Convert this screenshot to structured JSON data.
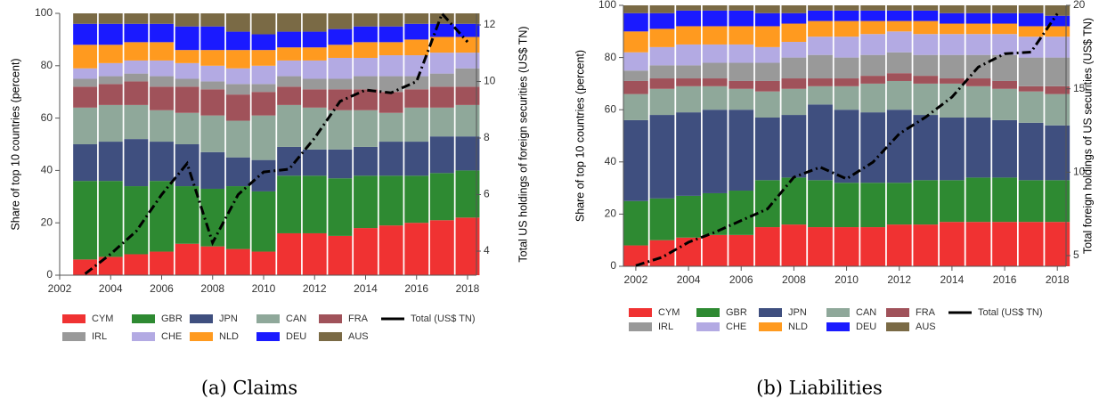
{
  "chart_data": [
    {
      "type": "stacked_bar",
      "caption": "(a) Claims",
      "ylabel": "Share of top 10 countries (percent)",
      "y2label": "Total US holdings of foreign securities (US$ TN)",
      "x": [
        2003,
        2004,
        2005,
        2006,
        2007,
        2008,
        2009,
        2010,
        2011,
        2012,
        2013,
        2014,
        2015,
        2016,
        2017,
        2018
      ],
      "xlim": [
        2002,
        2018.35
      ],
      "xticks": [
        2002,
        2004,
        2006,
        2008,
        2010,
        2012,
        2014,
        2016,
        2018
      ],
      "ylim": [
        0,
        100
      ],
      "yticks": [
        0,
        20,
        40,
        60,
        80,
        100
      ],
      "y2lim": [
        3.15,
        12.41
      ],
      "y2ticks": [
        4,
        6,
        8,
        10,
        12
      ],
      "series": [
        {
          "name": "CYM",
          "color": "#f03232",
          "values": [
            6,
            7,
            8,
            9,
            12,
            11,
            10,
            9,
            16,
            16,
            15,
            18,
            19,
            20,
            21,
            22
          ]
        },
        {
          "name": "GBR",
          "color": "#2e8a32",
          "values": [
            30,
            29,
            26,
            27,
            22,
            22,
            24,
            23,
            22,
            22,
            22,
            20,
            19,
            18,
            18,
            18
          ]
        },
        {
          "name": "JPN",
          "color": "#3f4f7f",
          "values": [
            14,
            15,
            18,
            15,
            16,
            14,
            11,
            12,
            11,
            10,
            11,
            11,
            13,
            13,
            14,
            13
          ]
        },
        {
          "name": "CAN",
          "color": "#8fa89a",
          "values": [
            14,
            14,
            13,
            12,
            12,
            14,
            14,
            17,
            16,
            16,
            15,
            14,
            11,
            13,
            11,
            12
          ]
        },
        {
          "name": "FRA",
          "color": "#a0525a",
          "values": [
            8,
            8,
            9,
            9,
            10,
            10,
            10,
            9,
            7,
            7,
            8,
            8,
            8,
            7,
            8,
            7
          ]
        },
        {
          "name": "IRL",
          "color": "#999999",
          "values": [
            3,
            3,
            3,
            4,
            3,
            3,
            4,
            3,
            4,
            4,
            4,
            5,
            6,
            5,
            5,
            7
          ]
        },
        {
          "name": "CHE",
          "color": "#b3aae3",
          "values": [
            4,
            5,
            5,
            6,
            6,
            6,
            6,
            7,
            6,
            7,
            8,
            7,
            8,
            8,
            8,
            6
          ]
        },
        {
          "name": "NLD",
          "color": "#ff9a1f",
          "values": [
            9,
            7,
            7,
            7,
            5,
            6,
            7,
            6,
            5,
            5,
            5,
            6,
            5,
            6,
            6,
            6
          ]
        },
        {
          "name": "DEU",
          "color": "#1a1aff",
          "values": [
            8,
            8,
            7,
            7,
            9,
            9,
            7,
            6,
            6,
            6,
            6,
            6,
            6,
            6,
            5,
            5
          ]
        },
        {
          "name": "AUS",
          "color": "#7a6a45",
          "values": [
            4,
            4,
            4,
            4,
            5,
            5,
            7,
            8,
            7,
            7,
            6,
            5,
            5,
            4,
            4,
            4
          ]
        },
        {
          "name": "Total (US$ TN)",
          "type": "line",
          "axis": "y2",
          "color": "#000000",
          "values": [
            3.2,
            3.9,
            4.7,
            6.0,
            7.1,
            4.3,
            6.0,
            6.8,
            6.9,
            8.0,
            9.3,
            9.7,
            9.6,
            10.0,
            12.4,
            11.4
          ]
        }
      ]
    },
    {
      "type": "stacked_bar",
      "caption": "(b) Liabilities",
      "ylabel": "Share of top 10 countries (percent)",
      "y2label": "Total foreign holdings of US securities (US$ TN)",
      "x": [
        2002,
        2003,
        2004,
        2005,
        2006,
        2007,
        2008,
        2009,
        2010,
        2011,
        2012,
        2013,
        2014,
        2015,
        2016,
        2017,
        2018
      ],
      "xlim": [
        2001.53,
        2018.33
      ],
      "xticks": [
        2002,
        2004,
        2006,
        2008,
        2010,
        2012,
        2014,
        2016,
        2018
      ],
      "ylim": [
        0,
        100
      ],
      "yticks": [
        0,
        20,
        40,
        60,
        80,
        100
      ],
      "y2lim": [
        4.36,
        20
      ],
      "y2ticks": [
        5,
        10,
        15,
        20
      ],
      "series": [
        {
          "name": "CYM",
          "color": "#f03232",
          "values": [
            8,
            10,
            11,
            12,
            12,
            15,
            16,
            15,
            15,
            15,
            16,
            16,
            17,
            17,
            17,
            17,
            17
          ]
        },
        {
          "name": "GBR",
          "color": "#2e8a32",
          "values": [
            17,
            16,
            16,
            16,
            17,
            18,
            18,
            18,
            17,
            17,
            16,
            17,
            16,
            17,
            17,
            16,
            16
          ]
        },
        {
          "name": "JPN",
          "color": "#3f4f7f",
          "values": [
            31,
            32,
            32,
            32,
            31,
            24,
            24,
            29,
            28,
            27,
            28,
            25,
            24,
            23,
            22,
            22,
            21
          ]
        },
        {
          "name": "CAN",
          "color": "#8fa89a",
          "values": [
            10,
            10,
            10,
            9,
            8,
            10,
            10,
            7,
            9,
            11,
            11,
            12,
            13,
            12,
            12,
            12,
            12
          ]
        },
        {
          "name": "FRA",
          "color": "#a0525a",
          "values": [
            5,
            4,
            3,
            3,
            3,
            4,
            4,
            3,
            3,
            3,
            3,
            3,
            2,
            3,
            3,
            2,
            3
          ]
        },
        {
          "name": "IRL",
          "color": "#999999",
          "values": [
            4,
            5,
            5,
            6,
            7,
            7,
            8,
            9,
            8,
            8,
            8,
            8,
            9,
            9,
            10,
            11,
            11
          ]
        },
        {
          "name": "CHE",
          "color": "#b3aae3",
          "values": [
            7,
            7,
            8,
            7,
            7,
            6,
            6,
            7,
            8,
            8,
            8,
            8,
            8,
            8,
            8,
            8,
            8
          ]
        },
        {
          "name": "NLD",
          "color": "#ff9a1f",
          "values": [
            8,
            7,
            7,
            7,
            7,
            8,
            7,
            6,
            6,
            5,
            4,
            5,
            4,
            4,
            4,
            4,
            4
          ]
        },
        {
          "name": "DEU",
          "color": "#1a1aff",
          "values": [
            7,
            6,
            6,
            6,
            6,
            5,
            4,
            4,
            4,
            4,
            4,
            4,
            4,
            4,
            4,
            5,
            4
          ]
        },
        {
          "name": "AUS",
          "color": "#7a6a45",
          "values": [
            3,
            3,
            2,
            2,
            2,
            3,
            3,
            2,
            2,
            2,
            2,
            2,
            3,
            3,
            3,
            3,
            4
          ]
        },
        {
          "name": "Total (US$ TN)",
          "type": "line",
          "axis": "y2",
          "color": "#000000",
          "values": [
            4.4,
            4.9,
            5.8,
            6.4,
            7.1,
            7.8,
            9.7,
            10.3,
            9.6,
            10.6,
            12.3,
            13.3,
            14.5,
            16.3,
            17.1,
            17.2,
            19.5
          ]
        }
      ]
    }
  ]
}
